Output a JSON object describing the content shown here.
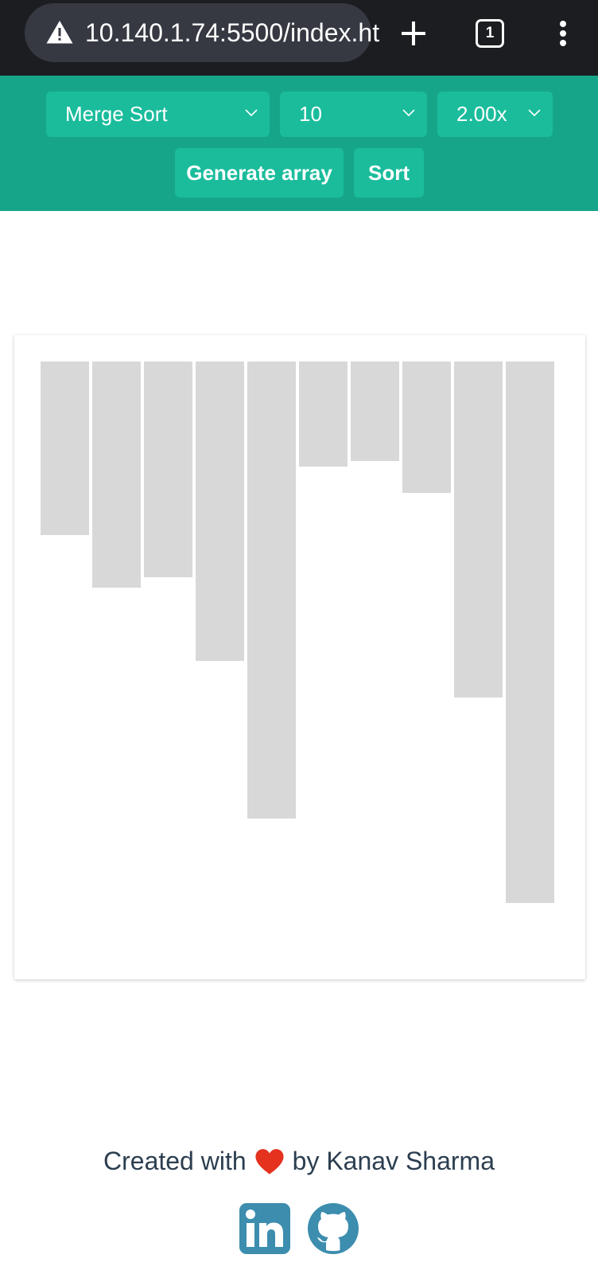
{
  "browser": {
    "url": "10.140.1.74:5500/index.ht",
    "tab_count": "1",
    "icons": [
      "warning-icon",
      "plus-icon",
      "tab-switcher-icon",
      "more-vert-icon"
    ]
  },
  "controls": {
    "algorithm": "Merge Sort",
    "array_size": "10",
    "speed": "2.00x",
    "generate_label": "Generate array",
    "sort_label": "Sort"
  },
  "colors": {
    "toolbar": "#17a589",
    "control": "#1abc9c",
    "bar": "#d8d8d8",
    "heart": "#e4321f",
    "social": "#3c8dae"
  },
  "array_values": [
    33,
    43,
    41,
    57,
    87,
    20,
    19,
    25,
    64,
    103
  ],
  "footer": {
    "prefix": "Created with",
    "suffix": "by Kanav Sharma",
    "icons": [
      "heart-icon",
      "linkedin-icon",
      "github-icon"
    ]
  }
}
